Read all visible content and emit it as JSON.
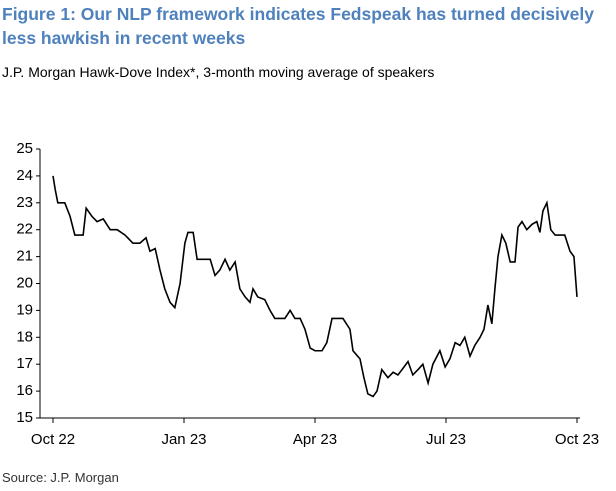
{
  "chart_data": {
    "type": "line",
    "title": "Figure 1: Our NLP framework indicates Fedspeak has turned decisively less hawkish in recent weeks",
    "subtitle": "J.P. Morgan Hawk-Dove Index*, 3-month moving average of speakers",
    "source": "Source: J.P. Morgan",
    "color": "#000000",
    "xlim": [
      0,
      12
    ],
    "xticks": [
      {
        "value": 0,
        "label": "Oct 22"
      },
      {
        "value": 3,
        "label": "Jan 23"
      },
      {
        "value": 6,
        "label": "Apr 23"
      },
      {
        "value": 9,
        "label": "Jul 23"
      },
      {
        "value": 12,
        "label": "Oct 23"
      }
    ],
    "ylim": [
      15,
      25
    ],
    "yticks": [
      15,
      16,
      17,
      18,
      19,
      20,
      21,
      22,
      23,
      24,
      25
    ],
    "x": [
      0,
      0.05,
      0.11,
      0.27,
      0.39,
      0.5,
      0.69,
      0.76,
      0.89,
      1.01,
      1.15,
      1.31,
      1.47,
      1.65,
      1.83,
      1.99,
      2.13,
      2.22,
      2.34,
      2.45,
      2.56,
      2.68,
      2.79,
      2.91,
      3.02,
      3.09,
      3.21,
      3.3,
      3.6,
      3.71,
      3.82,
      3.94,
      4.05,
      4.17,
      4.28,
      4.4,
      4.51,
      4.58,
      4.69,
      4.85,
      4.97,
      5.08,
      5.31,
      5.43,
      5.54,
      5.66,
      5.77,
      5.89,
      6.0,
      6.16,
      6.27,
      6.39,
      6.64,
      6.8,
      6.87,
      7.03,
      7.12,
      7.21,
      7.33,
      7.42,
      7.53,
      7.67,
      7.79,
      7.9,
      8.04,
      8.13,
      8.24,
      8.36,
      8.47,
      8.59,
      8.7,
      8.86,
      8.98,
      9.09,
      9.21,
      9.32,
      9.43,
      9.55,
      9.66,
      9.78,
      9.87,
      9.96,
      10.05,
      10.12,
      10.19,
      10.28,
      10.37,
      10.47,
      10.58,
      10.65,
      10.74,
      10.85,
      10.97,
      11.08,
      11.15,
      11.22,
      11.31,
      11.4,
      11.5,
      11.61,
      11.72,
      11.84,
      11.93,
      12.0
    ],
    "values": [
      24,
      23.5,
      23.0,
      23.0,
      22.5,
      21.8,
      21.8,
      22.8,
      22.5,
      22.3,
      22.4,
      22.0,
      22.0,
      21.8,
      21.5,
      21.5,
      21.7,
      21.2,
      21.3,
      20.5,
      19.8,
      19.3,
      19.1,
      20.0,
      21.5,
      21.9,
      21.9,
      20.9,
      20.9,
      20.3,
      20.5,
      20.9,
      20.5,
      20.8,
      19.8,
      19.5,
      19.3,
      19.8,
      19.5,
      19.4,
      19.0,
      18.7,
      18.7,
      19.0,
      18.7,
      18.7,
      18.3,
      17.6,
      17.5,
      17.5,
      17.8,
      18.7,
      18.7,
      18.3,
      17.5,
      17.2,
      16.5,
      15.9,
      15.8,
      16.0,
      16.8,
      16.5,
      16.7,
      16.6,
      16.9,
      17.1,
      16.6,
      16.8,
      17.0,
      16.3,
      17.0,
      17.5,
      16.9,
      17.2,
      17.8,
      17.7,
      18.0,
      17.3,
      17.7,
      18.0,
      18.3,
      19.2,
      18.5,
      19.8,
      21.0,
      21.8,
      21.5,
      20.8,
      20.8,
      22.1,
      22.3,
      22.0,
      22.2,
      22.3,
      21.9,
      22.7,
      23.0,
      22.0,
      21.8,
      21.8,
      21.8,
      21.2,
      21.0,
      19.5
    ]
  }
}
